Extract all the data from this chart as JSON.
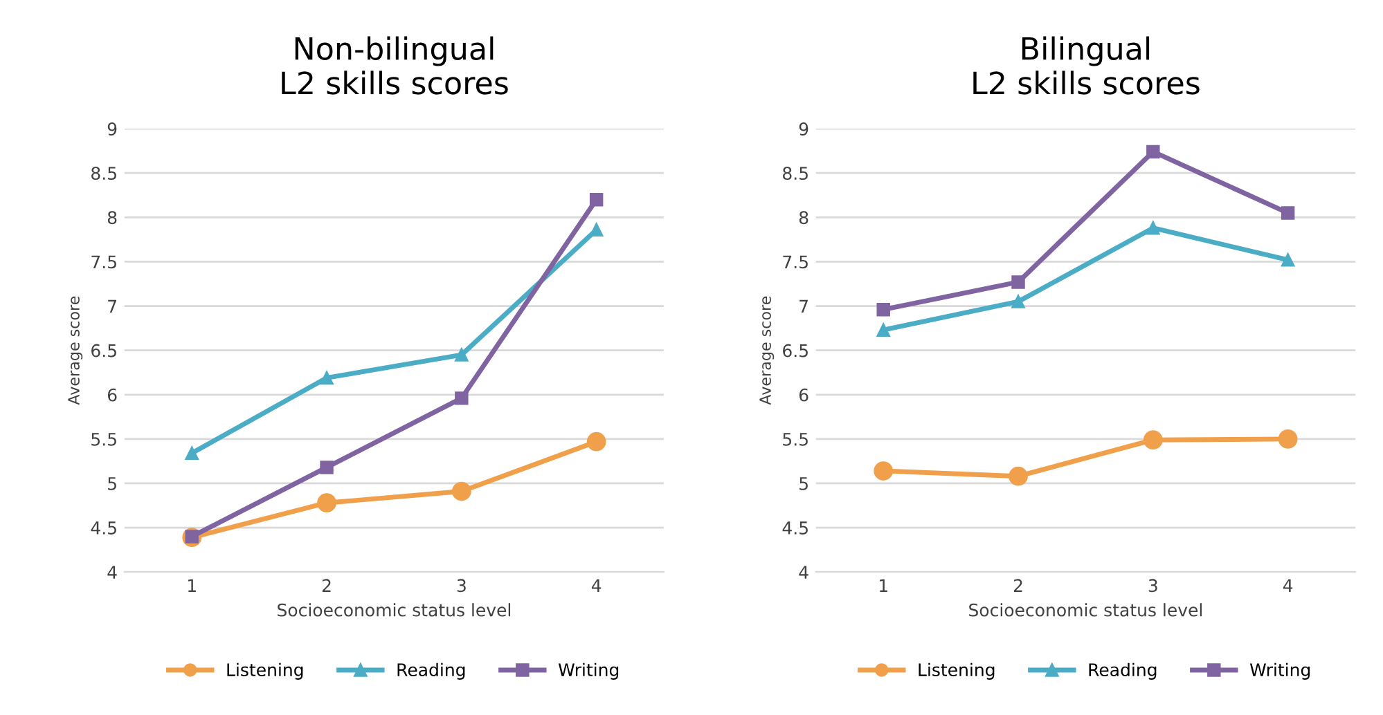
{
  "chart_data": [
    {
      "type": "line",
      "title": "Non-bilingual\nL2 skills scores",
      "xlabel": "Socioeconomic status level",
      "ylabel": "Average score",
      "categories": [
        "1",
        "2",
        "3",
        "4"
      ],
      "ylim": [
        4,
        9
      ],
      "yticks": [
        4,
        4.5,
        5,
        5.5,
        6,
        6.5,
        7,
        7.5,
        8,
        8.5,
        9
      ],
      "grid": "y",
      "legend": "bottom",
      "series": [
        {
          "name": "Listening",
          "color": "#f0a04b",
          "marker": "circle",
          "values": [
            4.39,
            4.78,
            4.91,
            5.47
          ]
        },
        {
          "name": "Reading",
          "color": "#4bacc6",
          "marker": "triangle",
          "values": [
            5.34,
            6.19,
            6.45,
            7.86
          ]
        },
        {
          "name": "Writing",
          "color": "#8064a2",
          "marker": "square",
          "values": [
            4.4,
            5.18,
            5.96,
            8.2
          ]
        }
      ]
    },
    {
      "type": "line",
      "title": "Bilingual\nL2 skills scores",
      "xlabel": "Socioeconomic status level",
      "ylabel": "Average score",
      "categories": [
        "1",
        "2",
        "3",
        "4"
      ],
      "ylim": [
        4,
        9
      ],
      "yticks": [
        4,
        4.5,
        5,
        5.5,
        6,
        6.5,
        7,
        7.5,
        8,
        8.5,
        9
      ],
      "grid": "y",
      "legend": "bottom",
      "series": [
        {
          "name": "Listening",
          "color": "#f0a04b",
          "marker": "circle",
          "values": [
            5.14,
            5.08,
            5.49,
            5.5
          ]
        },
        {
          "name": "Reading",
          "color": "#4bacc6",
          "marker": "triangle",
          "values": [
            6.73,
            7.05,
            7.88,
            7.52
          ]
        },
        {
          "name": "Writing",
          "color": "#8064a2",
          "marker": "square",
          "values": [
            6.96,
            7.27,
            8.74,
            8.05
          ]
        }
      ]
    }
  ]
}
